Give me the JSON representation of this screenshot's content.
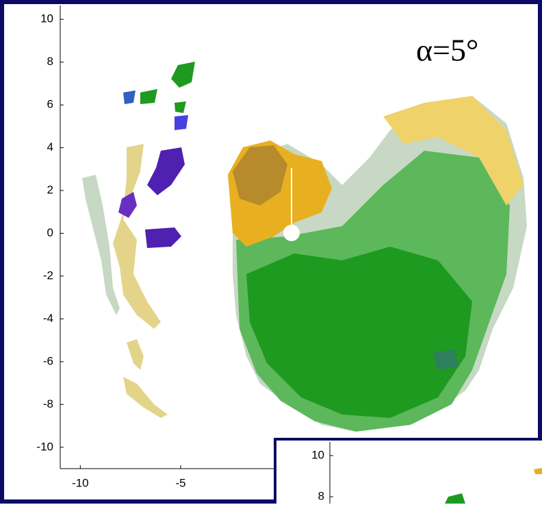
{
  "main_plot": {
    "xlim": [
      -11,
      13
    ],
    "ylim": [
      -11,
      11
    ],
    "xticks": [
      -10,
      -5
    ],
    "yticks": [
      10,
      8,
      6,
      4,
      2,
      0,
      -2,
      -4,
      -6,
      -8,
      -10
    ]
  },
  "annotation": "α=5°",
  "inset": {
    "ylim": [
      7.67,
      10.83
    ],
    "yticks": [
      10,
      8
    ]
  }
}
